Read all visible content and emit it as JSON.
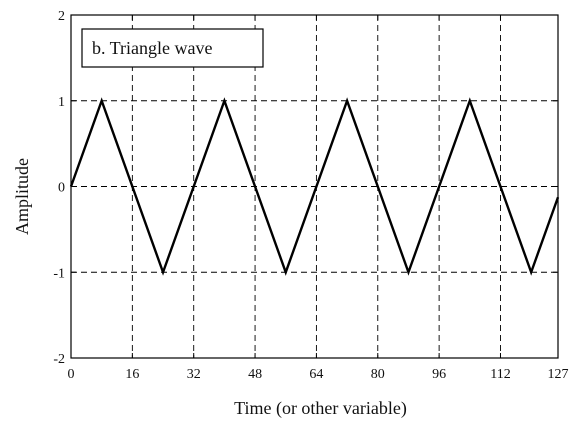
{
  "chart_data": {
    "type": "line",
    "legend_text": "b.  Triangle wave",
    "legend_position": "top-left",
    "xlabel": "Time (or other variable)",
    "ylabel": "Amplitude",
    "xlim": [
      0,
      127
    ],
    "ylim": [
      -2,
      2
    ],
    "xticks": [
      0,
      16,
      32,
      48,
      64,
      80,
      96,
      112,
      127
    ],
    "yticks": [
      -2,
      -1,
      0,
      1,
      2
    ],
    "grid": true,
    "grid_style": "dashed",
    "series": [
      {
        "color": "#000000",
        "x": [
          0,
          8,
          24,
          40,
          56,
          72,
          88,
          104,
          120,
          127
        ],
        "y": [
          0,
          1,
          -1,
          1,
          -1,
          1,
          -1,
          1,
          -1,
          -0.125
        ]
      }
    ]
  }
}
